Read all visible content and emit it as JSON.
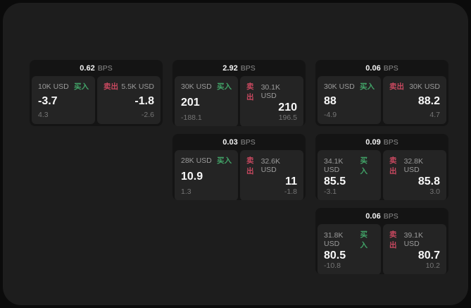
{
  "labels": {
    "bps_unit": "BPS",
    "buy": "买入",
    "sell": "卖出"
  },
  "colors": {
    "buy_green": "#42a468",
    "sell_red": "#c7485f",
    "panel_bg": "#1d1d1d",
    "card_bg": "#141414",
    "subpanel_bg": "#242424"
  },
  "cards": [
    {
      "row": 0,
      "col": 0,
      "bps": "0.62",
      "buy": {
        "amount": "10K USD",
        "price": "-3.7",
        "delta": "4.3"
      },
      "sell": {
        "amount": "5.5K USD",
        "price": "-1.8",
        "delta": "-2.6"
      }
    },
    {
      "row": 0,
      "col": 1,
      "bps": "2.92",
      "buy": {
        "amount": "30K USD",
        "price": "201",
        "delta": "-188.1"
      },
      "sell": {
        "amount": "30.1K USD",
        "price": "210",
        "delta": "196.5"
      }
    },
    {
      "row": 0,
      "col": 2,
      "bps": "0.06",
      "buy": {
        "amount": "30K USD",
        "price": "88",
        "delta": "-4.9"
      },
      "sell": {
        "amount": "30K USD",
        "price": "88.2",
        "delta": "4.7"
      }
    },
    {
      "row": 1,
      "col": 1,
      "bps": "0.03",
      "buy": {
        "amount": "28K USD",
        "price": "10.9",
        "delta": "1.3"
      },
      "sell": {
        "amount": "32.6K USD",
        "price": "11",
        "delta": "-1.8"
      }
    },
    {
      "row": 1,
      "col": 2,
      "bps": "0.09",
      "buy": {
        "amount": "34.1K USD",
        "price": "85.5",
        "delta": "-3.1"
      },
      "sell": {
        "amount": "32.8K USD",
        "price": "85.8",
        "delta": "3.0"
      }
    },
    {
      "row": 2,
      "col": 2,
      "bps": "0.06",
      "buy": {
        "amount": "31.8K USD",
        "price": "80.5",
        "delta": "-10.8"
      },
      "sell": {
        "amount": "39.1K USD",
        "price": "80.7",
        "delta": "10.2"
      }
    }
  ]
}
